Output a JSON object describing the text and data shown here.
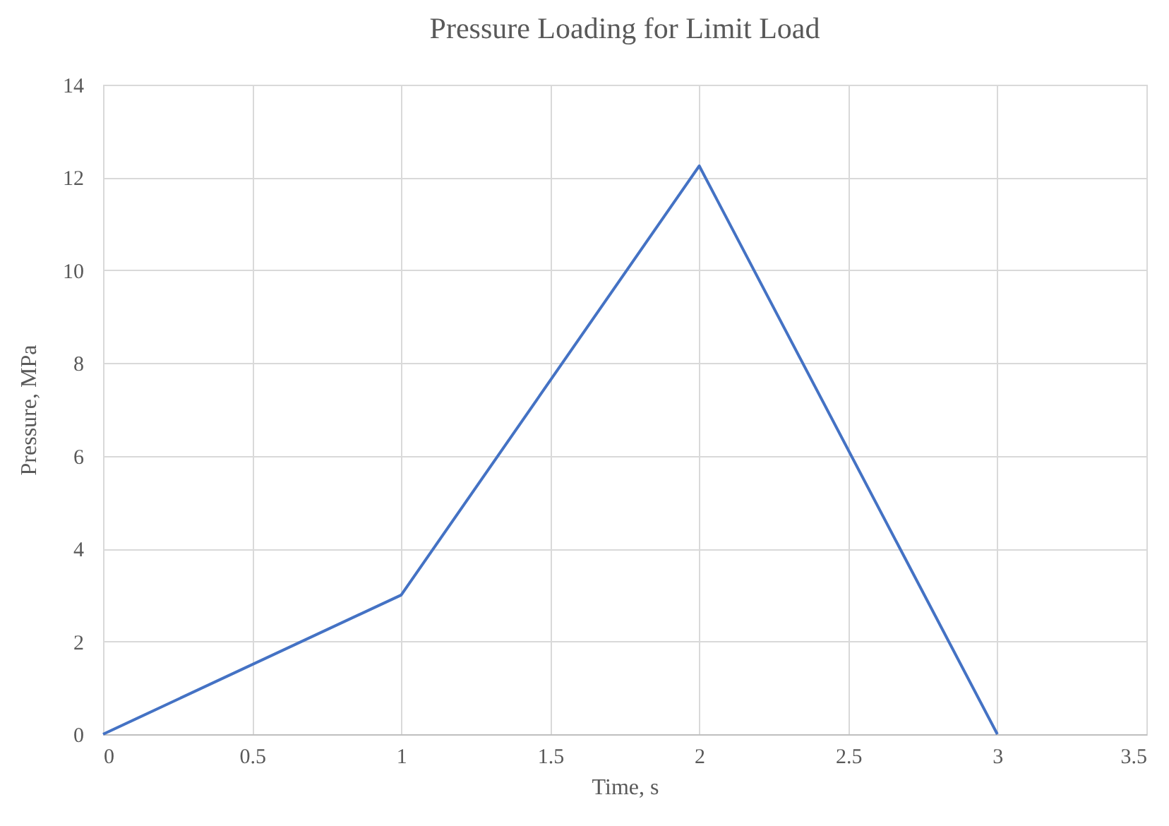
{
  "chart_data": {
    "type": "line",
    "title": "Pressure Loading for Limit Load",
    "xlabel": "Time, s",
    "ylabel": "Pressure, MPa",
    "x": [
      0,
      1,
      2,
      3
    ],
    "series": [
      {
        "color": "#4472c4",
        "values": [
          0,
          3,
          12.25,
          0
        ]
      }
    ],
    "xlim": [
      0,
      3.5
    ],
    "xticks": [
      0,
      0.5,
      1,
      1.5,
      2,
      2.5,
      3,
      3.5
    ],
    "ylim": [
      0,
      14
    ],
    "yticks": [
      0,
      2,
      4,
      6,
      8,
      10,
      12,
      14
    ],
    "grid": true,
    "marker": "none",
    "line_style": "solid"
  }
}
